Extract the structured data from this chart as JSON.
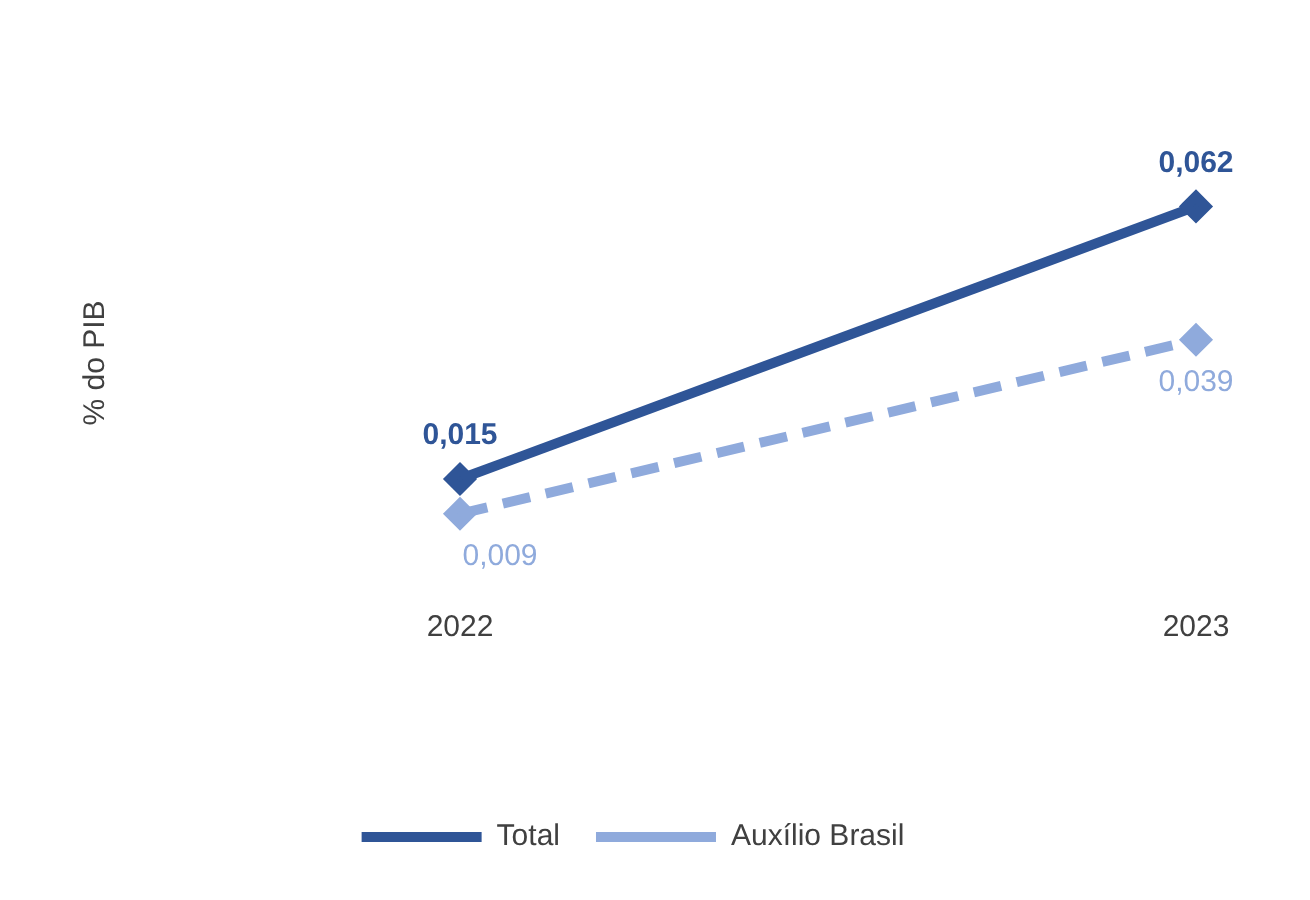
{
  "chart_data": {
    "type": "line",
    "ylabel": "% do PIB",
    "categories": [
      "2022",
      "2023"
    ],
    "series": [
      {
        "name": "Total",
        "color": "#2f5597",
        "values": [
          0.015,
          0.062
        ],
        "value_labels": [
          "0,015",
          "0,062"
        ],
        "line_style": "solid"
      },
      {
        "name": "Auxílio Brasil",
        "color": "#8faadc",
        "values": [
          0.009,
          0.039
        ],
        "value_labels": [
          "0,009",
          "0,039"
        ],
        "line_style": "dashed"
      }
    ],
    "tick_labels": "x",
    "legend": "bottom",
    "marker": "diamond",
    "grid": false
  }
}
